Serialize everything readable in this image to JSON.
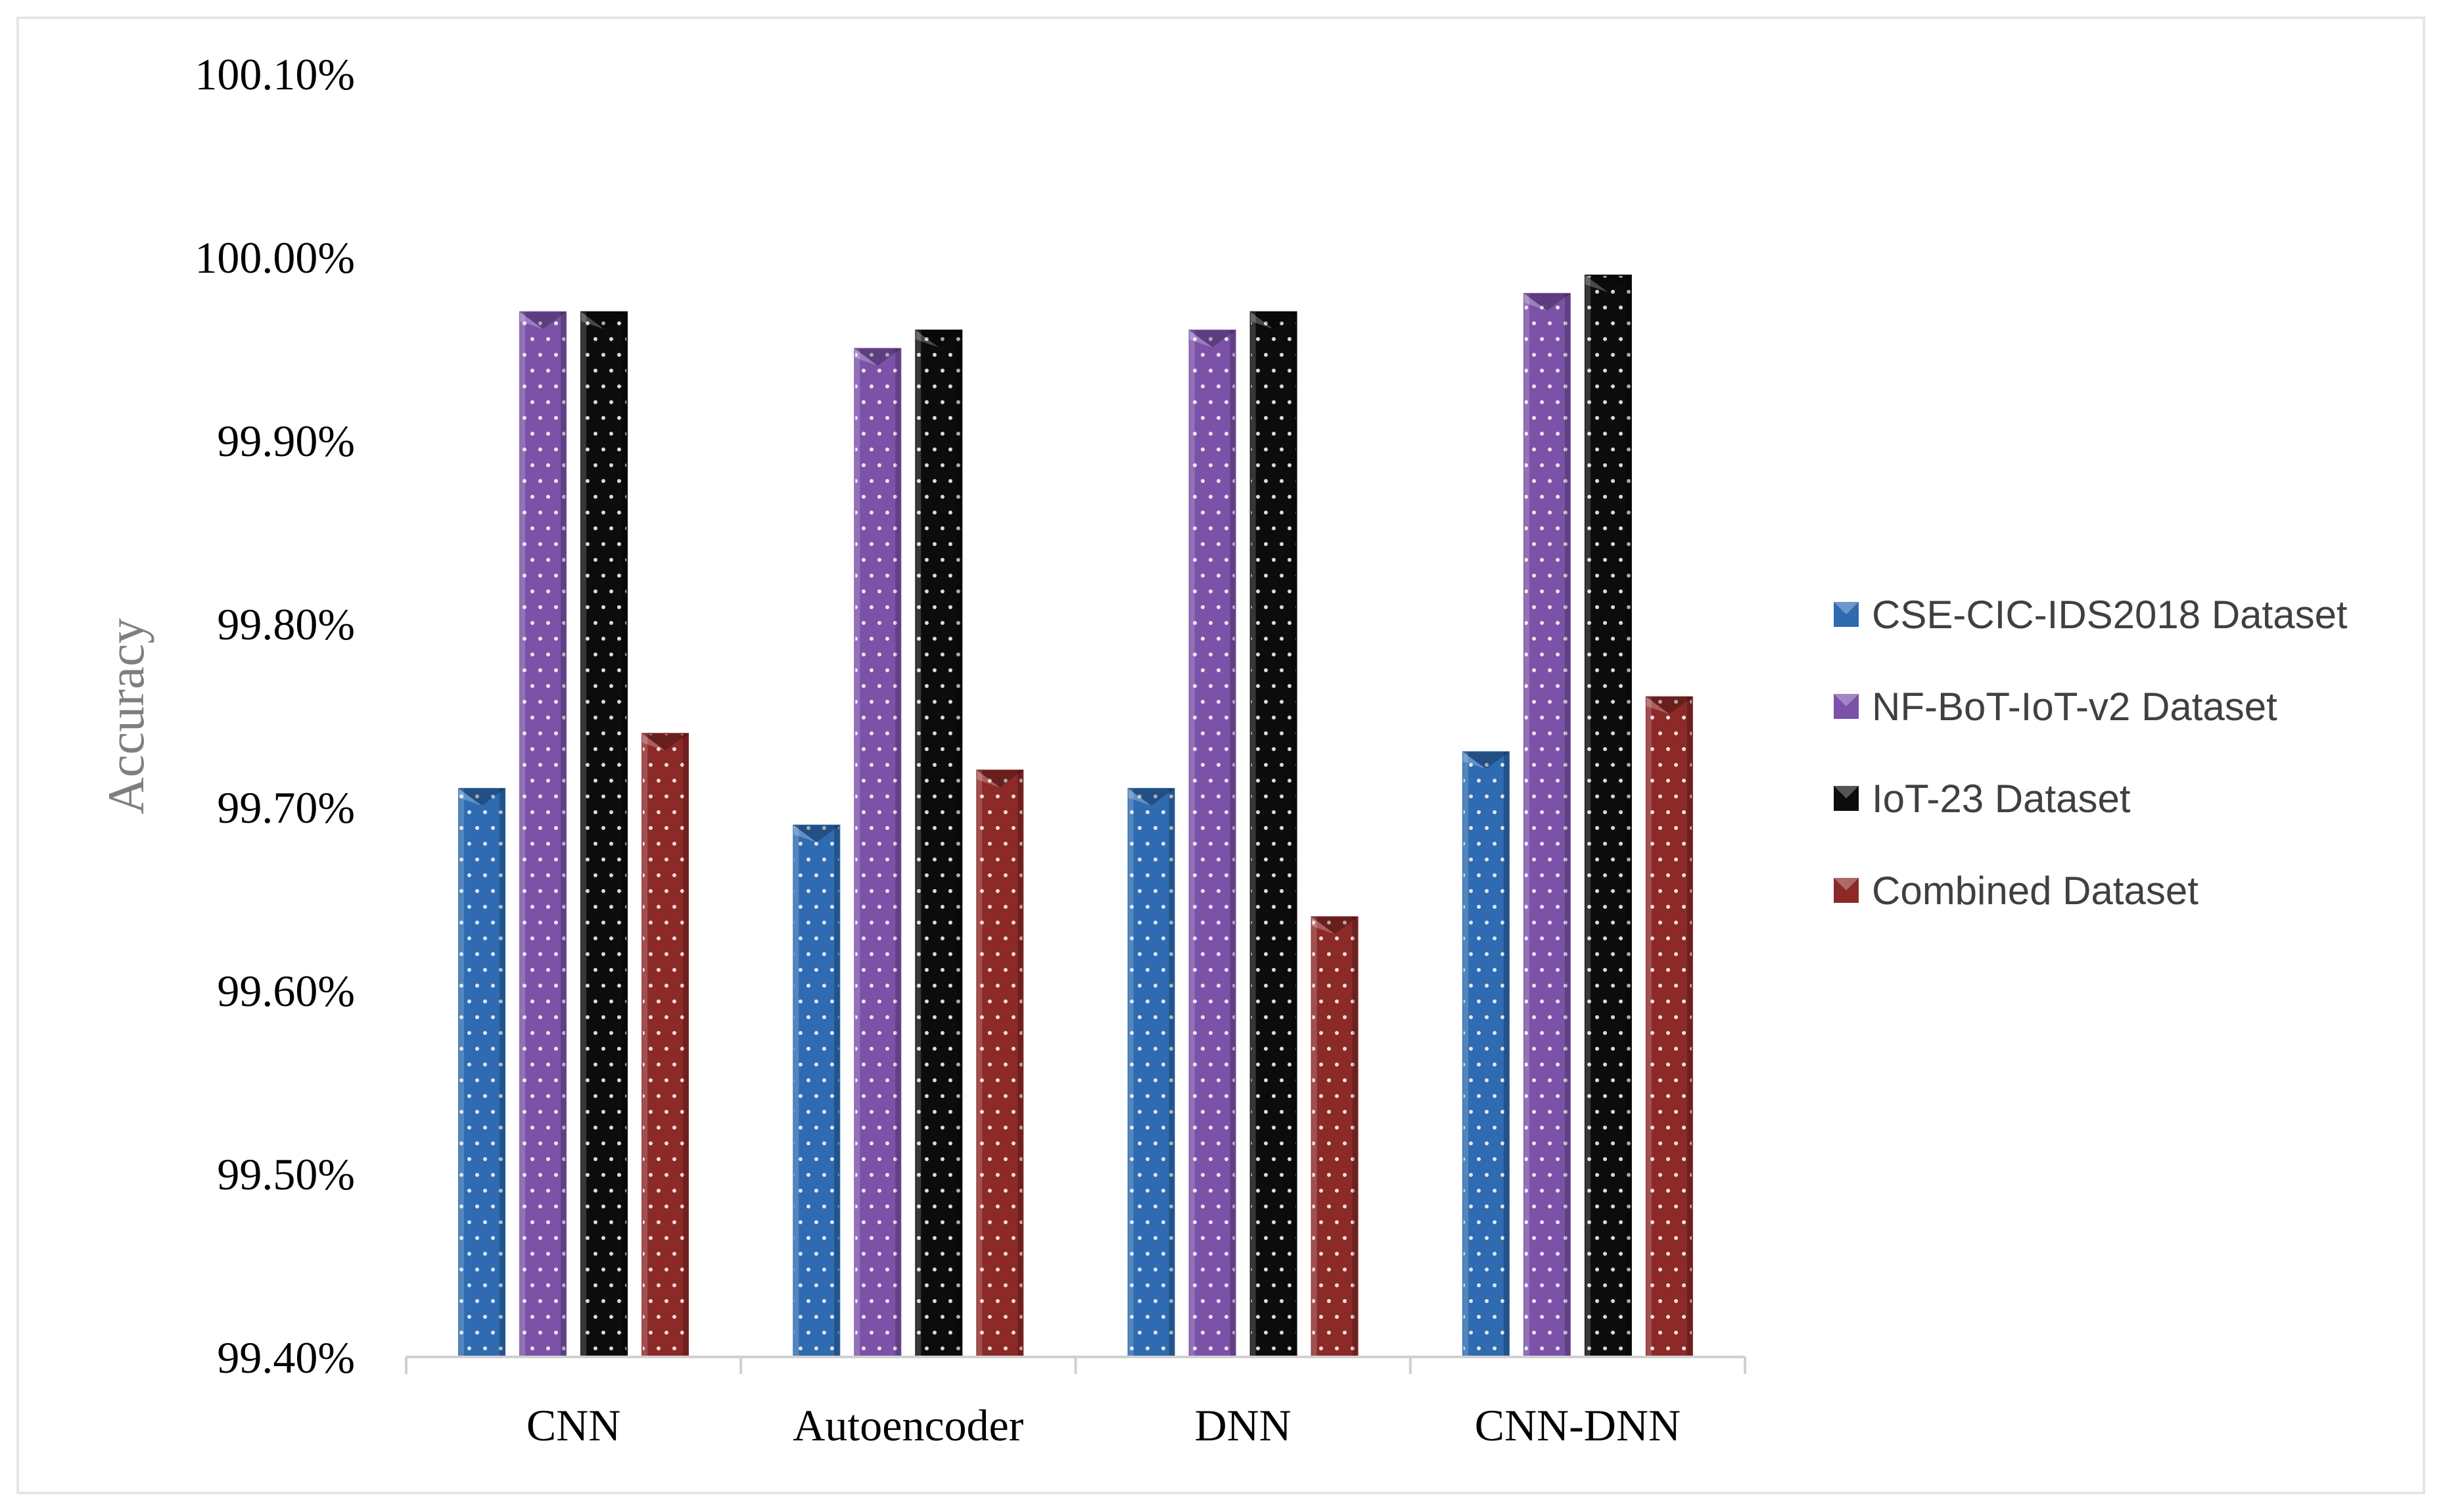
{
  "chart_data": {
    "type": "bar",
    "title": "",
    "xlabel": "",
    "ylabel": "Accuracy",
    "ylim": [
      0.994,
      1.001
    ],
    "yticks": [
      "99.40%",
      "99.50%",
      "99.60%",
      "99.70%",
      "99.80%",
      "99.90%",
      "100.00%",
      "100.10%"
    ],
    "categories": [
      "CNN",
      "Autoencoder",
      "DNN",
      "CNN-DNN"
    ],
    "series": [
      {
        "name": "CSE-CIC-IDS2018 Dataset",
        "color": "#2e6bb0",
        "values": [
          0.9971,
          0.9969,
          0.9971,
          0.9973
        ]
      },
      {
        "name": "NF-BoT-IoT-v2 Dataset",
        "color": "#7b52a8",
        "values": [
          0.9997,
          0.9995,
          0.9996,
          0.9998
        ]
      },
      {
        "name": "IoT-23 Dataset",
        "color": "#0c0c0c",
        "values": [
          0.9997,
          0.9996,
          0.9997,
          0.9999
        ]
      },
      {
        "name": "Combined Dataset",
        "color": "#8c2a28",
        "values": [
          0.9974,
          0.9972,
          0.9964,
          0.9976
        ]
      }
    ],
    "grid": false,
    "legend_position": "right"
  }
}
